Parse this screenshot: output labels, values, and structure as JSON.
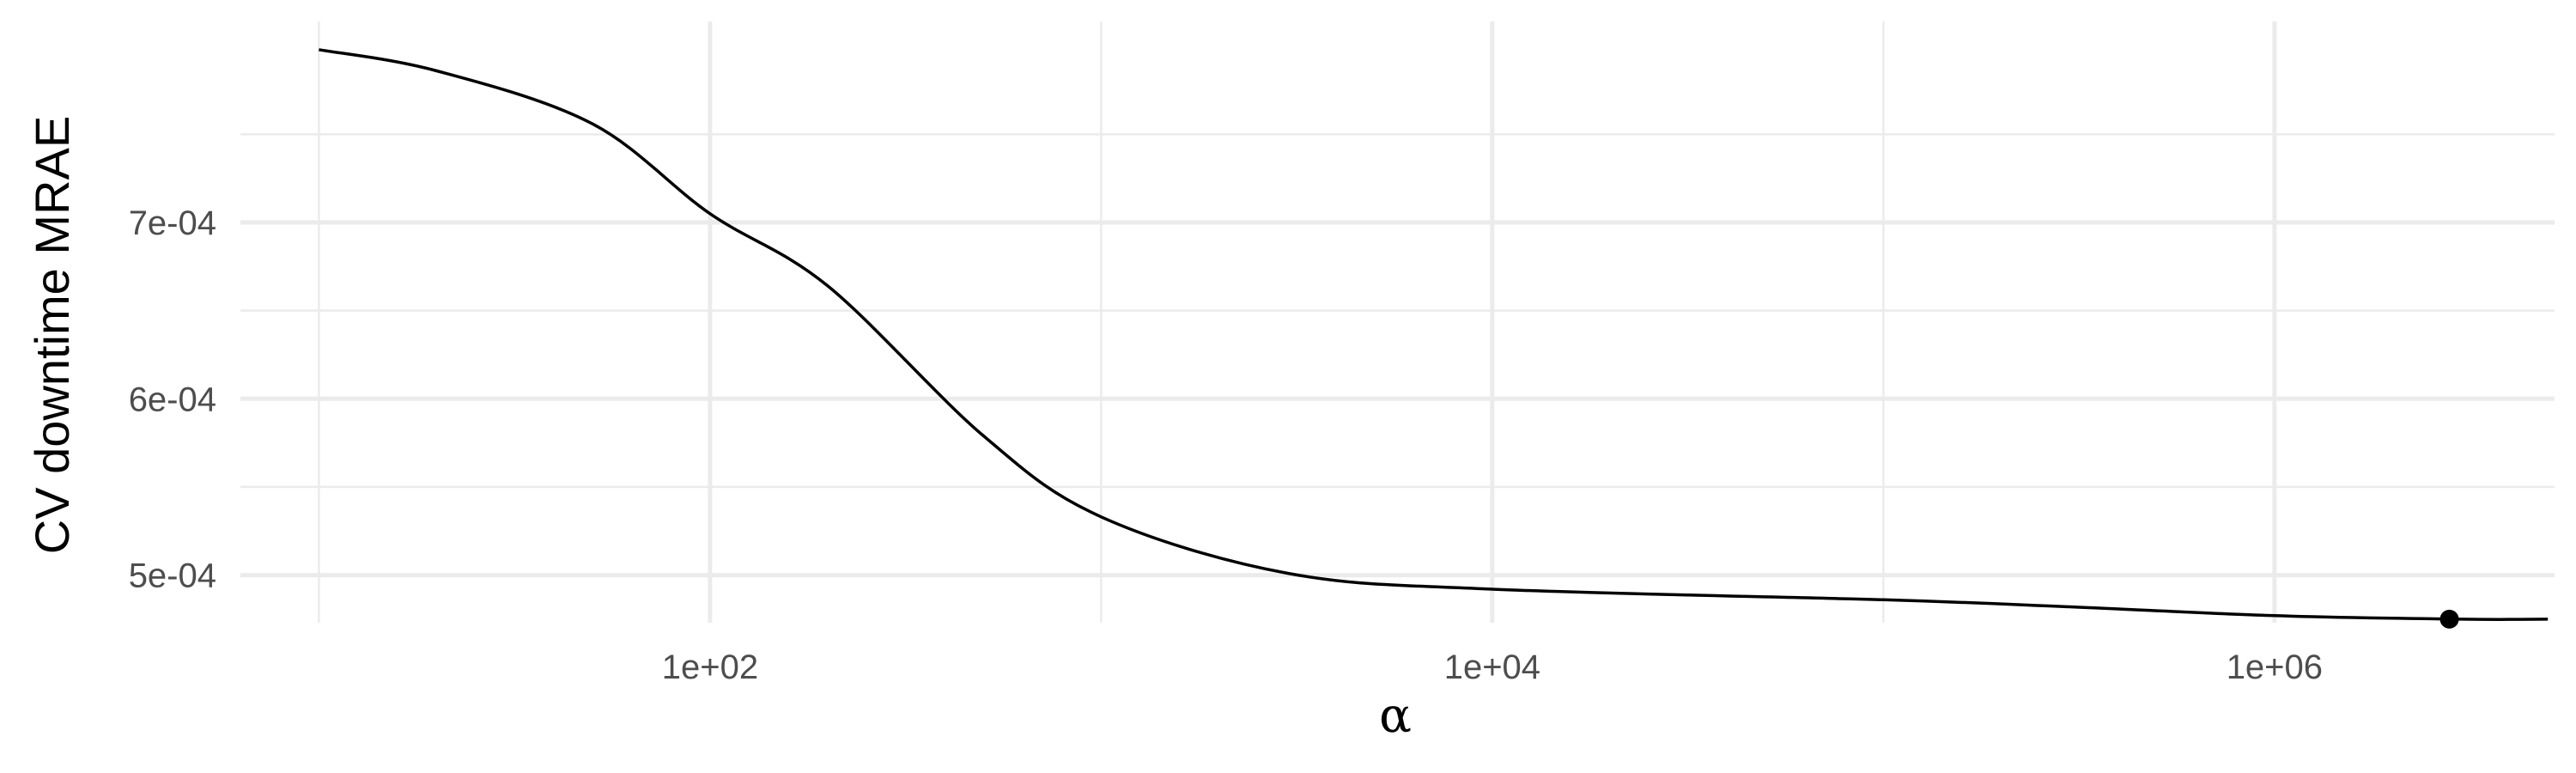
{
  "chart_data": {
    "type": "line",
    "xlabel": "α",
    "ylabel": "CV downtime MRAE",
    "x_scale": "log10",
    "xlim": [
      6.3,
      5200000.0
    ],
    "ylim": [
      0.000473,
      0.000814
    ],
    "x_ticks": [
      {
        "value": 100,
        "label": "1e+02"
      },
      {
        "value": 10000,
        "label": "1e+04"
      },
      {
        "value": 1000000,
        "label": "1e+06"
      }
    ],
    "x_minor_ticks": [
      10,
      1000,
      100000
    ],
    "y_ticks": [
      {
        "value": 0.0005,
        "label": "5e-04"
      },
      {
        "value": 0.0006,
        "label": "6e-04"
      },
      {
        "value": 0.0007,
        "label": "7e-04"
      }
    ],
    "y_minor_ticks": [
      0.00055,
      0.00065,
      0.00075
    ],
    "grid": true,
    "series": [
      {
        "x": [
          10,
          20,
          50,
          100,
          200,
          500,
          1000,
          3000,
          10000,
          100000,
          300000,
          1000000,
          3000000,
          5000000
        ],
        "y": [
          0.000798,
          0.000786,
          0.000756,
          0.000705,
          0.000664,
          0.000579,
          0.000533,
          0.000501,
          0.000492,
          0.000486,
          0.000482,
          0.000477,
          0.000475,
          0.000475
        ]
      }
    ],
    "highlight_point": {
      "x": 2800000,
      "y": 0.000475
    }
  }
}
